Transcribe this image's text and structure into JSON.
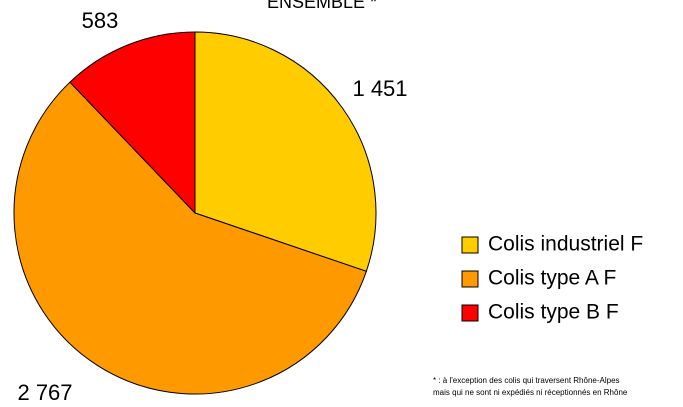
{
  "chart_data": {
    "type": "pie",
    "title": "ENSEMBLE *",
    "categories": [
      "Colis industriel F",
      "Colis type A F",
      "Colis type B F"
    ],
    "values": [
      1451,
      2767,
      583
    ],
    "value_labels": [
      "1 451",
      "2 767",
      "583"
    ],
    "colors": [
      "#ffcc00",
      "#ff9900",
      "#ff0000"
    ],
    "legend": "right",
    "footnote": [
      "* : à l'exception des colis qui traversent Rhône-Alpes",
      "mais qui ne sont ni expédiés ni réceptionnés en Rhône"
    ]
  }
}
